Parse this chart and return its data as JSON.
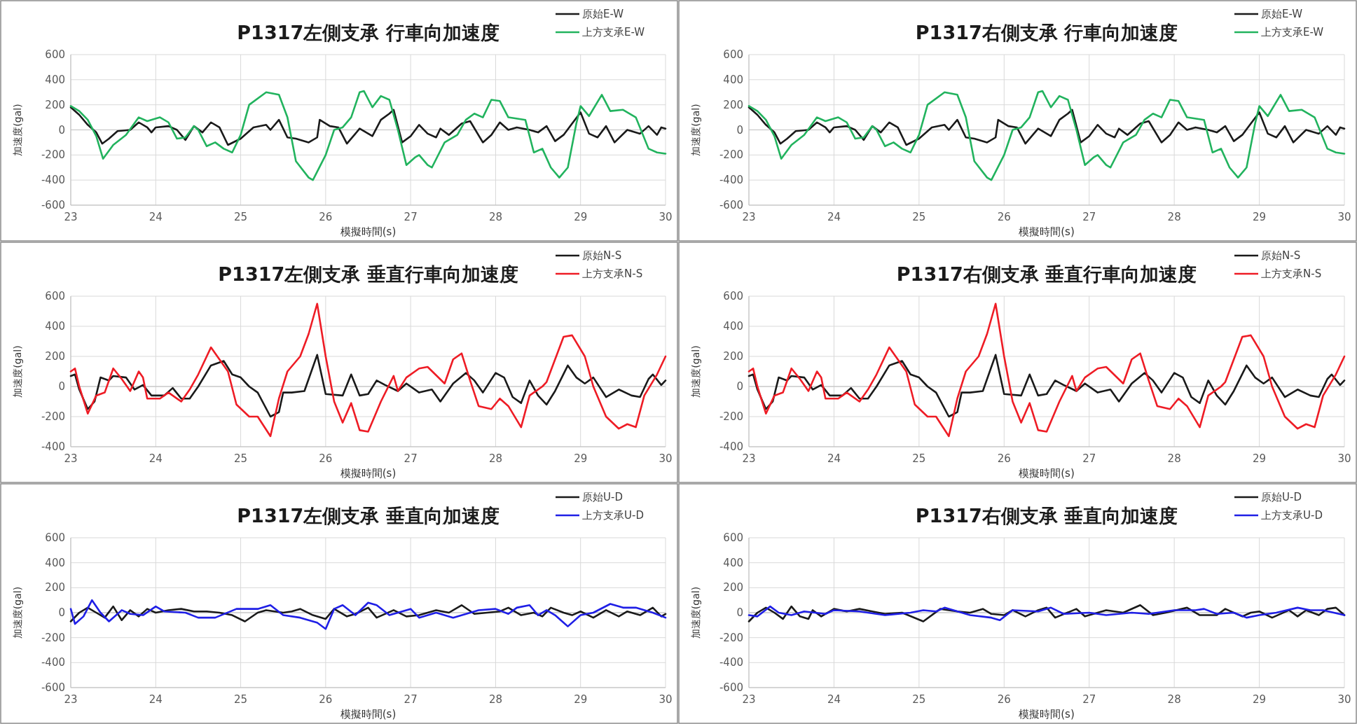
{
  "chart_data": [
    {
      "type": "line",
      "title": "P1317左側支承 行車向加速度",
      "xlabel": "模擬時間(s)",
      "ylabel": "加速度(gal)",
      "xlim": [
        23,
        30
      ],
      "xticks": [
        23,
        24,
        25,
        26,
        27,
        28,
        29,
        30
      ],
      "ylim": [
        -600,
        600
      ],
      "yticks": [
        -600,
        -400,
        -200,
        0,
        200,
        400,
        600
      ],
      "grid": true,
      "legend": "top right",
      "series": [
        {
          "name": "原始E-W",
          "color": "#1a1a1a",
          "x": [
            23.0,
            23.1,
            23.2,
            23.3,
            23.37,
            23.45,
            23.55,
            23.7,
            23.8,
            23.9,
            23.95,
            24.0,
            24.15,
            24.25,
            24.35,
            24.45,
            24.55,
            24.65,
            24.75,
            24.85,
            25.0,
            25.15,
            25.3,
            25.35,
            25.45,
            25.55,
            25.65,
            25.8,
            25.9,
            25.93,
            26.05,
            26.15,
            26.25,
            26.4,
            26.55,
            26.65,
            26.75,
            26.8,
            26.9,
            27.0,
            27.1,
            27.2,
            27.3,
            27.35,
            27.45,
            27.6,
            27.7,
            27.85,
            27.95,
            28.05,
            28.15,
            28.25,
            28.4,
            28.5,
            28.6,
            28.7,
            28.8,
            28.9,
            29.0,
            29.1,
            29.2,
            29.3,
            29.4,
            29.55,
            29.7,
            29.8,
            29.9,
            29.95,
            30.0
          ],
          "values": [
            180,
            120,
            40,
            -20,
            -110,
            -70,
            -10,
            0,
            60,
            20,
            -20,
            20,
            30,
            0,
            -80,
            30,
            -20,
            60,
            20,
            -120,
            -70,
            20,
            40,
            0,
            80,
            -60,
            -70,
            -100,
            -60,
            80,
            30,
            20,
            -110,
            10,
            -50,
            80,
            130,
            160,
            -100,
            -50,
            40,
            -30,
            -60,
            10,
            -40,
            50,
            70,
            -100,
            -40,
            60,
            0,
            20,
            0,
            -20,
            30,
            -90,
            -40,
            50,
            140,
            -30,
            -60,
            30,
            -100,
            0,
            -30,
            30,
            -40,
            20,
            10
          ]
        },
        {
          "name": "上方支承E-W",
          "color": "#22b35e",
          "x": [
            23.0,
            23.1,
            23.2,
            23.3,
            23.38,
            23.5,
            23.65,
            23.8,
            23.9,
            24.05,
            24.15,
            24.25,
            24.35,
            24.45,
            24.5,
            24.6,
            24.7,
            24.8,
            24.9,
            25.0,
            25.1,
            25.3,
            25.45,
            25.55,
            25.65,
            25.8,
            25.85,
            26.0,
            26.1,
            26.2,
            26.3,
            26.4,
            26.45,
            26.55,
            26.65,
            26.75,
            26.85,
            26.95,
            27.05,
            27.1,
            27.2,
            27.25,
            27.4,
            27.55,
            27.65,
            27.75,
            27.85,
            27.95,
            28.05,
            28.15,
            28.35,
            28.45,
            28.55,
            28.65,
            28.75,
            28.85,
            28.95,
            29.0,
            29.1,
            29.25,
            29.35,
            29.5,
            29.65,
            29.8,
            29.9,
            30.0
          ],
          "values": [
            190,
            150,
            80,
            -50,
            -230,
            -120,
            -40,
            100,
            70,
            100,
            60,
            -70,
            -60,
            30,
            0,
            -130,
            -100,
            -150,
            -180,
            -40,
            200,
            300,
            280,
            100,
            -250,
            -380,
            -400,
            -200,
            0,
            20,
            100,
            300,
            310,
            180,
            270,
            240,
            0,
            -280,
            -220,
            -200,
            -280,
            -300,
            -100,
            -40,
            80,
            130,
            100,
            240,
            230,
            100,
            80,
            -180,
            -150,
            -300,
            -380,
            -300,
            50,
            190,
            110,
            280,
            150,
            160,
            100,
            -150,
            -180,
            -190
          ]
        }
      ]
    },
    {
      "type": "line",
      "title": "P1317右側支承 行車向加速度",
      "xlabel": "模擬時間(s)",
      "ylabel": "加速度(gal)",
      "xlim": [
        23,
        30
      ],
      "xticks": [
        23,
        24,
        25,
        26,
        27,
        28,
        29,
        30
      ],
      "ylim": [
        -600,
        600
      ],
      "yticks": [
        -600,
        -400,
        -200,
        0,
        200,
        400,
        600
      ],
      "grid": true,
      "legend": "top right",
      "series": [
        {
          "name": "原始E-W",
          "color": "#1a1a1a",
          "x": [
            23.0,
            23.1,
            23.2,
            23.3,
            23.37,
            23.45,
            23.55,
            23.7,
            23.8,
            23.9,
            23.95,
            24.0,
            24.15,
            24.25,
            24.35,
            24.45,
            24.55,
            24.65,
            24.75,
            24.85,
            25.0,
            25.15,
            25.3,
            25.35,
            25.45,
            25.55,
            25.65,
            25.8,
            25.9,
            25.93,
            26.05,
            26.15,
            26.25,
            26.4,
            26.55,
            26.65,
            26.75,
            26.8,
            26.9,
            27.0,
            27.1,
            27.2,
            27.3,
            27.35,
            27.45,
            27.6,
            27.7,
            27.85,
            27.95,
            28.05,
            28.15,
            28.25,
            28.4,
            28.5,
            28.6,
            28.7,
            28.8,
            28.9,
            29.0,
            29.1,
            29.2,
            29.3,
            29.4,
            29.55,
            29.7,
            29.8,
            29.9,
            29.95,
            30.0
          ],
          "values": [
            180,
            120,
            40,
            -20,
            -110,
            -70,
            -10,
            0,
            60,
            20,
            -20,
            20,
            30,
            0,
            -80,
            30,
            -20,
            60,
            20,
            -120,
            -70,
            20,
            40,
            0,
            80,
            -60,
            -70,
            -100,
            -60,
            80,
            30,
            20,
            -110,
            10,
            -50,
            80,
            130,
            160,
            -100,
            -50,
            40,
            -30,
            -60,
            10,
            -40,
            50,
            70,
            -100,
            -40,
            60,
            0,
            20,
            0,
            -20,
            30,
            -90,
            -40,
            50,
            140,
            -30,
            -60,
            30,
            -100,
            0,
            -30,
            30,
            -40,
            20,
            10
          ]
        },
        {
          "name": "上方支承E-W",
          "color": "#22b35e",
          "x": [
            23.0,
            23.1,
            23.2,
            23.3,
            23.38,
            23.5,
            23.65,
            23.8,
            23.9,
            24.05,
            24.15,
            24.25,
            24.35,
            24.45,
            24.5,
            24.6,
            24.7,
            24.8,
            24.9,
            25.0,
            25.1,
            25.3,
            25.45,
            25.55,
            25.65,
            25.8,
            25.85,
            26.0,
            26.1,
            26.2,
            26.3,
            26.4,
            26.45,
            26.55,
            26.65,
            26.75,
            26.85,
            26.95,
            27.05,
            27.1,
            27.2,
            27.25,
            27.4,
            27.55,
            27.65,
            27.75,
            27.85,
            27.95,
            28.05,
            28.15,
            28.35,
            28.45,
            28.55,
            28.65,
            28.75,
            28.85,
            28.95,
            29.0,
            29.1,
            29.25,
            29.35,
            29.5,
            29.65,
            29.8,
            29.9,
            30.0
          ],
          "values": [
            190,
            150,
            80,
            -50,
            -230,
            -120,
            -40,
            100,
            70,
            100,
            60,
            -70,
            -60,
            30,
            0,
            -130,
            -100,
            -150,
            -180,
            -40,
            200,
            300,
            280,
            100,
            -250,
            -380,
            -400,
            -200,
            0,
            20,
            100,
            300,
            310,
            180,
            270,
            240,
            0,
            -280,
            -220,
            -200,
            -280,
            -300,
            -100,
            -40,
            80,
            130,
            100,
            240,
            230,
            100,
            80,
            -180,
            -150,
            -300,
            -380,
            -300,
            50,
            190,
            110,
            280,
            150,
            160,
            100,
            -150,
            -180,
            -190
          ]
        }
      ]
    },
    {
      "type": "line",
      "title": "P1317左側支承 垂直行車向加速度",
      "xlabel": "模擬時間(s)",
      "ylabel": "加速度(gal)",
      "xlim": [
        23,
        30
      ],
      "xticks": [
        23,
        24,
        25,
        26,
        27,
        28,
        29,
        30
      ],
      "ylim": [
        -400,
        600
      ],
      "yticks": [
        -400,
        -200,
        0,
        200,
        400,
        600
      ],
      "grid": true,
      "legend": "top right",
      "series": [
        {
          "name": "原始N-S",
          "color": "#1a1a1a",
          "x": [
            23.0,
            23.05,
            23.1,
            23.2,
            23.28,
            23.35,
            23.45,
            23.5,
            23.65,
            23.75,
            23.85,
            23.95,
            24.1,
            24.2,
            24.3,
            24.4,
            24.5,
            24.65,
            24.8,
            24.9,
            25.0,
            25.1,
            25.2,
            25.35,
            25.45,
            25.5,
            25.6,
            25.75,
            25.9,
            26.0,
            26.2,
            26.3,
            26.4,
            26.5,
            26.6,
            26.7,
            26.85,
            26.95,
            27.1,
            27.25,
            27.35,
            27.5,
            27.65,
            27.75,
            27.85,
            28.0,
            28.1,
            28.2,
            28.3,
            28.4,
            28.5,
            28.6,
            28.7,
            28.85,
            28.95,
            29.05,
            29.15,
            29.3,
            29.45,
            29.6,
            29.7,
            29.8,
            29.85,
            29.95,
            30.0
          ],
          "values": [
            70,
            80,
            -20,
            -150,
            -100,
            60,
            40,
            70,
            60,
            -20,
            10,
            -60,
            -60,
            -10,
            -80,
            -80,
            0,
            140,
            170,
            80,
            60,
            0,
            -40,
            -200,
            -170,
            -40,
            -40,
            -30,
            210,
            -50,
            -60,
            80,
            -60,
            -50,
            40,
            10,
            -30,
            20,
            -40,
            -20,
            -100,
            20,
            90,
            40,
            -40,
            90,
            60,
            -70,
            -110,
            40,
            -60,
            -120,
            -30,
            140,
            60,
            20,
            60,
            -70,
            -20,
            -60,
            -70,
            50,
            80,
            10,
            40
          ]
        },
        {
          "name": "上方支承N-S",
          "color": "#ee1c25",
          "x": [
            23.0,
            23.05,
            23.1,
            23.2,
            23.3,
            23.4,
            23.5,
            23.6,
            23.7,
            23.8,
            23.85,
            23.9,
            24.05,
            24.15,
            24.3,
            24.4,
            24.5,
            24.65,
            24.75,
            24.85,
            24.95,
            25.1,
            25.2,
            25.35,
            25.45,
            25.55,
            25.7,
            25.8,
            25.9,
            26.0,
            26.1,
            26.2,
            26.3,
            26.4,
            26.5,
            26.65,
            26.8,
            26.85,
            26.95,
            27.1,
            27.2,
            27.4,
            27.5,
            27.6,
            27.7,
            27.8,
            27.95,
            28.05,
            28.15,
            28.3,
            28.4,
            28.55,
            28.6,
            28.7,
            28.8,
            28.9,
            29.05,
            29.15,
            29.3,
            29.45,
            29.55,
            29.65,
            29.75,
            29.9,
            30.0
          ],
          "values": [
            100,
            120,
            0,
            -180,
            -60,
            -40,
            120,
            50,
            -30,
            100,
            60,
            -80,
            -80,
            -40,
            -100,
            -20,
            80,
            260,
            180,
            100,
            -120,
            -200,
            -200,
            -330,
            -80,
            100,
            200,
            350,
            550,
            200,
            -100,
            -240,
            -110,
            -290,
            -300,
            -100,
            70,
            -30,
            60,
            120,
            130,
            20,
            180,
            220,
            40,
            -130,
            -150,
            -80,
            -130,
            -270,
            -60,
            0,
            30,
            180,
            330,
            340,
            200,
            0,
            -200,
            -280,
            -250,
            -270,
            -60,
            80,
            200
          ]
        }
      ]
    },
    {
      "type": "line",
      "title": "P1317右側支承 垂直行車向加速度",
      "xlabel": "模擬時間(s)",
      "ylabel": "加速度(gal)",
      "xlim": [
        23,
        30
      ],
      "xticks": [
        23,
        24,
        25,
        26,
        27,
        28,
        29,
        30
      ],
      "ylim": [
        -400,
        600
      ],
      "yticks": [
        -400,
        -200,
        0,
        200,
        400,
        600
      ],
      "grid": true,
      "legend": "top right",
      "series": [
        {
          "name": "原始N-S",
          "color": "#1a1a1a",
          "x": [
            23.0,
            23.05,
            23.1,
            23.2,
            23.28,
            23.35,
            23.45,
            23.5,
            23.65,
            23.75,
            23.85,
            23.95,
            24.1,
            24.2,
            24.3,
            24.4,
            24.5,
            24.65,
            24.8,
            24.9,
            25.0,
            25.1,
            25.2,
            25.35,
            25.45,
            25.5,
            25.6,
            25.75,
            25.9,
            26.0,
            26.2,
            26.3,
            26.4,
            26.5,
            26.6,
            26.7,
            26.85,
            26.95,
            27.1,
            27.25,
            27.35,
            27.5,
            27.65,
            27.75,
            27.85,
            28.0,
            28.1,
            28.2,
            28.3,
            28.4,
            28.5,
            28.6,
            28.7,
            28.85,
            28.95,
            29.05,
            29.15,
            29.3,
            29.45,
            29.6,
            29.7,
            29.8,
            29.85,
            29.95,
            30.0
          ],
          "values": [
            70,
            80,
            -20,
            -150,
            -100,
            60,
            40,
            70,
            60,
            -20,
            10,
            -60,
            -60,
            -10,
            -80,
            -80,
            0,
            140,
            170,
            80,
            60,
            0,
            -40,
            -200,
            -170,
            -40,
            -40,
            -30,
            210,
            -50,
            -60,
            80,
            -60,
            -50,
            40,
            10,
            -30,
            20,
            -40,
            -20,
            -100,
            20,
            90,
            40,
            -40,
            90,
            60,
            -70,
            -110,
            40,
            -60,
            -120,
            -30,
            140,
            60,
            20,
            60,
            -70,
            -20,
            -60,
            -70,
            50,
            80,
            10,
            40
          ]
        },
        {
          "name": "上方支承N-S",
          "color": "#ee1c25",
          "x": [
            23.0,
            23.05,
            23.1,
            23.2,
            23.3,
            23.4,
            23.5,
            23.6,
            23.7,
            23.8,
            23.85,
            23.9,
            24.05,
            24.15,
            24.3,
            24.4,
            24.5,
            24.65,
            24.75,
            24.85,
            24.95,
            25.1,
            25.2,
            25.35,
            25.45,
            25.55,
            25.7,
            25.8,
            25.9,
            26.0,
            26.1,
            26.2,
            26.3,
            26.4,
            26.5,
            26.65,
            26.8,
            26.85,
            26.95,
            27.1,
            27.2,
            27.4,
            27.5,
            27.6,
            27.7,
            27.8,
            27.95,
            28.05,
            28.15,
            28.3,
            28.4,
            28.55,
            28.6,
            28.7,
            28.8,
            28.9,
            29.05,
            29.15,
            29.3,
            29.45,
            29.55,
            29.65,
            29.75,
            29.9,
            30.0
          ],
          "values": [
            100,
            120,
            0,
            -180,
            -60,
            -40,
            120,
            50,
            -30,
            100,
            60,
            -80,
            -80,
            -40,
            -100,
            -20,
            80,
            260,
            180,
            100,
            -120,
            -200,
            -200,
            -330,
            -80,
            100,
            200,
            350,
            550,
            200,
            -100,
            -240,
            -110,
            -290,
            -300,
            -100,
            70,
            -30,
            60,
            120,
            130,
            20,
            180,
            220,
            40,
            -130,
            -150,
            -80,
            -130,
            -270,
            -60,
            0,
            30,
            180,
            330,
            340,
            200,
            0,
            -200,
            -280,
            -250,
            -270,
            -60,
            80,
            200
          ]
        }
      ]
    },
    {
      "type": "line",
      "title": "P1317左側支承 垂直向加速度",
      "xlabel": "模擬時間(s)",
      "ylabel": "加速度(gal)",
      "xlim": [
        23,
        30
      ],
      "xticks": [
        23,
        24,
        25,
        26,
        27,
        28,
        29,
        30
      ],
      "ylim": [
        -600,
        600
      ],
      "yticks": [
        -600,
        -400,
        -200,
        0,
        200,
        400,
        600
      ],
      "grid": true,
      "legend": "top right",
      "series": [
        {
          "name": "原始U-D",
          "color": "#1a1a1a",
          "x": [
            23.0,
            23.1,
            23.2,
            23.3,
            23.4,
            23.5,
            23.6,
            23.7,
            23.8,
            23.9,
            24.0,
            24.15,
            24.3,
            24.45,
            24.6,
            24.75,
            24.9,
            25.05,
            25.2,
            25.3,
            25.5,
            25.6,
            25.7,
            25.85,
            26.0,
            26.1,
            26.25,
            26.35,
            26.5,
            26.6,
            26.8,
            26.95,
            27.1,
            27.3,
            27.45,
            27.6,
            27.75,
            27.9,
            28.05,
            28.15,
            28.3,
            28.45,
            28.55,
            28.65,
            28.8,
            28.9,
            29.0,
            29.15,
            29.3,
            29.45,
            29.55,
            29.7,
            29.85,
            29.95,
            30.0
          ],
          "values": [
            -70,
            0,
            40,
            0,
            -40,
            50,
            -60,
            20,
            -30,
            30,
            0,
            20,
            30,
            10,
            10,
            0,
            -20,
            -70,
            0,
            20,
            0,
            10,
            30,
            -20,
            -50,
            30,
            -30,
            -10,
            40,
            -40,
            20,
            -30,
            -20,
            20,
            0,
            60,
            -10,
            0,
            10,
            40,
            -20,
            0,
            -30,
            40,
            0,
            -20,
            10,
            -40,
            20,
            -30,
            10,
            -20,
            40,
            -30,
            -10
          ]
        },
        {
          "name": "上方支承U-D",
          "color": "#1f1fe6",
          "x": [
            23.0,
            23.05,
            23.15,
            23.25,
            23.35,
            23.45,
            23.6,
            23.7,
            23.85,
            24.0,
            24.1,
            24.35,
            24.5,
            24.7,
            24.95,
            25.2,
            25.35,
            25.5,
            25.7,
            25.9,
            26.0,
            26.1,
            26.2,
            26.35,
            26.5,
            26.6,
            26.75,
            27.0,
            27.1,
            27.3,
            27.5,
            27.8,
            28.0,
            28.15,
            28.25,
            28.4,
            28.5,
            28.6,
            28.7,
            28.8,
            28.85,
            29.0,
            29.15,
            29.35,
            29.5,
            29.65,
            29.85,
            30.0
          ],
          "values": [
            30,
            -90,
            -30,
            100,
            0,
            -70,
            20,
            -10,
            -20,
            50,
            10,
            0,
            -40,
            -40,
            30,
            30,
            60,
            -20,
            -40,
            -80,
            -130,
            30,
            60,
            -20,
            80,
            60,
            -20,
            30,
            -40,
            0,
            -40,
            20,
            30,
            -10,
            40,
            60,
            -20,
            20,
            -20,
            -80,
            -110,
            -20,
            0,
            70,
            40,
            40,
            0,
            -40
          ]
        }
      ]
    },
    {
      "type": "line",
      "title": "P1317右側支承 垂直向加速度",
      "xlabel": "模擬時間(s)",
      "ylabel": "加速度(gal)",
      "xlim": [
        23,
        30
      ],
      "xticks": [
        23,
        24,
        25,
        26,
        27,
        28,
        29,
        30
      ],
      "ylim": [
        -600,
        600
      ],
      "yticks": [
        -600,
        -400,
        -200,
        0,
        200,
        400,
        600
      ],
      "grid": true,
      "legend": "top right",
      "series": [
        {
          "name": "原始U-D",
          "color": "#1a1a1a",
          "x": [
            23.0,
            23.1,
            23.2,
            23.3,
            23.4,
            23.5,
            23.6,
            23.7,
            23.75,
            23.85,
            24.0,
            24.15,
            24.3,
            24.45,
            24.6,
            24.8,
            25.05,
            25.25,
            25.45,
            25.6,
            25.75,
            25.85,
            26.0,
            26.1,
            26.25,
            26.4,
            26.5,
            26.6,
            26.85,
            26.95,
            27.2,
            27.4,
            27.6,
            27.75,
            27.9,
            28.15,
            28.3,
            28.5,
            28.6,
            28.8,
            28.9,
            29.0,
            29.15,
            29.35,
            29.45,
            29.55,
            29.7,
            29.8,
            29.9,
            30.0
          ],
          "values": [
            -70,
            0,
            40,
            0,
            -50,
            50,
            -30,
            -50,
            20,
            -30,
            30,
            10,
            30,
            10,
            -10,
            0,
            -70,
            30,
            10,
            0,
            30,
            -10,
            -20,
            20,
            -30,
            20,
            40,
            -40,
            30,
            -30,
            20,
            0,
            60,
            -20,
            0,
            40,
            -20,
            -20,
            30,
            -30,
            0,
            10,
            -40,
            20,
            -30,
            20,
            -20,
            30,
            40,
            -20
          ]
        },
        {
          "name": "上方支承U-D",
          "color": "#1f1fe6",
          "x": [
            23.0,
            23.1,
            23.25,
            23.35,
            23.5,
            23.65,
            23.9,
            24.0,
            24.3,
            24.6,
            24.9,
            25.05,
            25.2,
            25.3,
            25.6,
            25.85,
            25.95,
            26.1,
            26.4,
            26.55,
            26.7,
            27.0,
            27.2,
            27.5,
            27.7,
            28.0,
            28.25,
            28.35,
            28.5,
            28.7,
            28.85,
            29.0,
            29.2,
            29.45,
            29.6,
            29.75,
            30.0
          ],
          "values": [
            -20,
            -30,
            50,
            0,
            -20,
            10,
            -10,
            20,
            10,
            -20,
            0,
            20,
            10,
            40,
            -20,
            -40,
            -60,
            20,
            10,
            40,
            -10,
            0,
            -20,
            0,
            -10,
            20,
            20,
            30,
            -10,
            0,
            -40,
            -20,
            0,
            40,
            20,
            20,
            -20
          ]
        }
      ]
    }
  ]
}
